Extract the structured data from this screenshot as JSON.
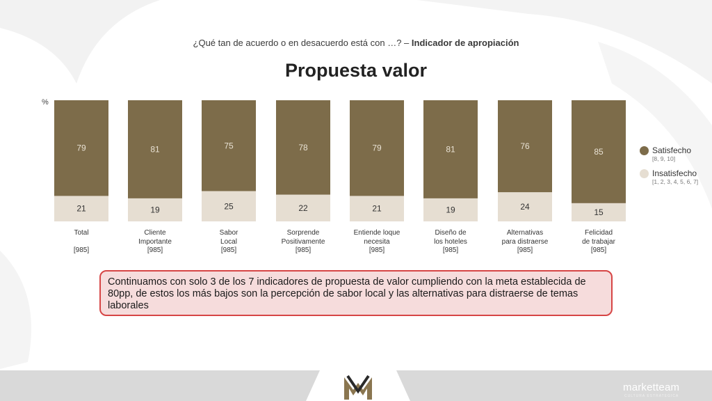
{
  "header": {
    "subtitle_plain": "¿Qué tan de acuerdo o en desacuerdo está con …? –",
    "subtitle_bold": "Indicador de apropiación",
    "title": "Propuesta valor"
  },
  "chart_data": {
    "type": "bar",
    "stacked": true,
    "unit_label": "%",
    "categories": [
      {
        "lines": [
          "Total",
          "",
          "[985]"
        ]
      },
      {
        "lines": [
          "Cliente",
          "Importante",
          "[985]"
        ]
      },
      {
        "lines": [
          "Sabor",
          "Local",
          "[985]"
        ]
      },
      {
        "lines": [
          "Sorprende",
          "Positivamente",
          "[985]"
        ]
      },
      {
        "lines": [
          "Entiende loque",
          "necesita",
          "[985]"
        ]
      },
      {
        "lines": [
          "Diseño de",
          "los hoteles",
          "[985]"
        ]
      },
      {
        "lines": [
          "Alternativas",
          "para distraerse",
          "[985]"
        ]
      },
      {
        "lines": [
          "Felicidad",
          "de trabajar",
          "[985]"
        ]
      }
    ],
    "series": [
      {
        "name": "Satisfecho",
        "values": [
          79,
          81,
          75,
          78,
          79,
          81,
          76,
          85
        ],
        "color": "#7d6c4a"
      },
      {
        "name": "Insatisfecho",
        "values": [
          21,
          19,
          25,
          22,
          21,
          19,
          24,
          15
        ],
        "color": "#e6ded2"
      }
    ],
    "ylim": [
      0,
      100
    ],
    "legend_position": "right"
  },
  "legend": [
    {
      "label": "Satisfecho",
      "sub": "[8, 9, 10]",
      "color": "#7d6c4a"
    },
    {
      "label": "Insatisfecho",
      "sub": "[1, 2, 3, 4, 5, 6, 7]",
      "color": "#e6ded2"
    }
  ],
  "callout": {
    "text": "Continuamos con solo 3 de los 7 indicadores de propuesta de valor cumpliendo con la meta establecida de 80pp, de estos los más bajos son la percepción de sabor local y las alternativas para distraerse de temas laborales"
  },
  "footer": {
    "logo_icon": "mm-monogram-icon",
    "brand": "marketteam",
    "brand_sub": "CULTURA ESTRATEGICA"
  }
}
